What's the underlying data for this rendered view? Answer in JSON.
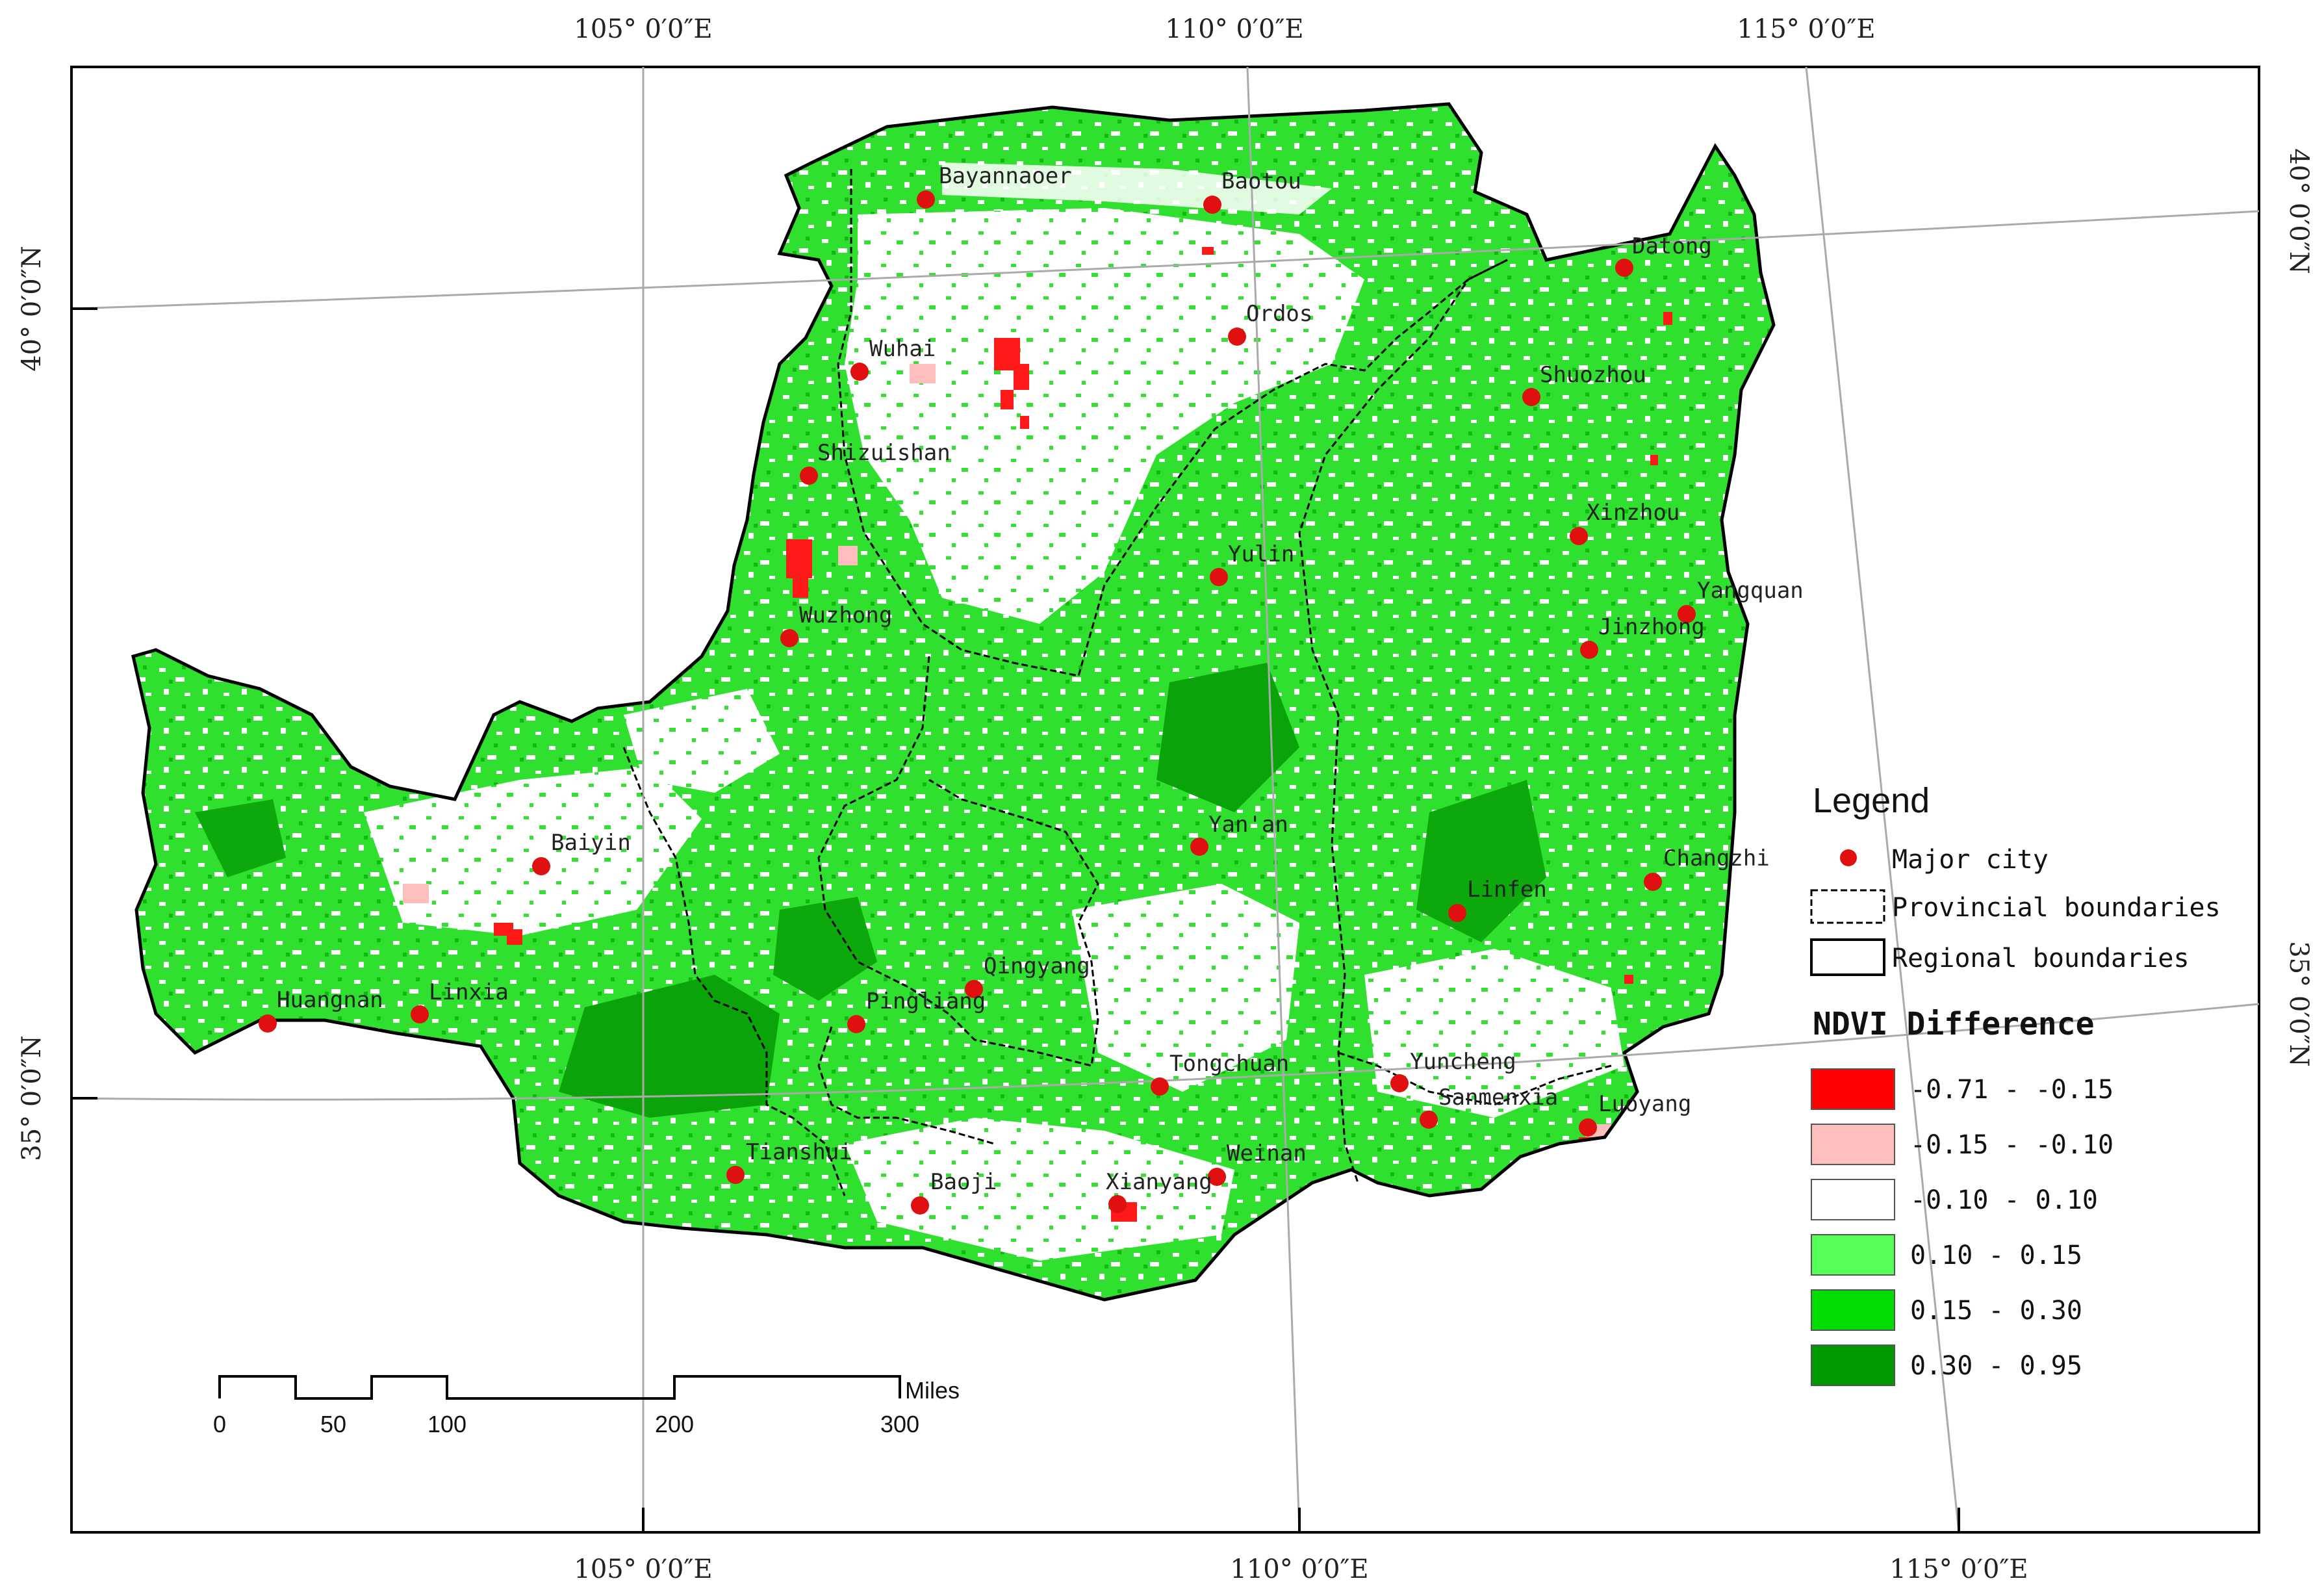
{
  "graticule": {
    "top_labels": [
      "105° 0′0″E",
      "110° 0′0″E",
      "115° 0′0″E"
    ],
    "bottom_labels": [
      "105° 0′0″E",
      "110° 0′0″E",
      "115° 0′0″E"
    ],
    "left_labels": [
      "40° 0′0″N",
      "35° 0′0″N"
    ],
    "right_labels": [
      "40° 0′0″N",
      "35° 0′0″N"
    ]
  },
  "cities": [
    {
      "name": "Bayannaoer"
    },
    {
      "name": "Baotou"
    },
    {
      "name": "Datong"
    },
    {
      "name": "Ordos"
    },
    {
      "name": "Wuhai"
    },
    {
      "name": "Shuozhou"
    },
    {
      "name": "Shizuishan"
    },
    {
      "name": "Xinzhou"
    },
    {
      "name": "Yulin"
    },
    {
      "name": "Yangquan"
    },
    {
      "name": "Wuzhong"
    },
    {
      "name": "Jinzhong"
    },
    {
      "name": "Yan'an"
    },
    {
      "name": "Baiyin"
    },
    {
      "name": "Changzhi"
    },
    {
      "name": "Linfen"
    },
    {
      "name": "Qingyang"
    },
    {
      "name": "Huangnan"
    },
    {
      "name": "Linxia"
    },
    {
      "name": "Pingliang"
    },
    {
      "name": "Tongchuan"
    },
    {
      "name": "Yuncheng"
    },
    {
      "name": "Sanmenxia"
    },
    {
      "name": "Luoyang"
    },
    {
      "name": "Tianshui"
    },
    {
      "name": "Weinan"
    },
    {
      "name": "Baoji"
    },
    {
      "name": "Xianyang"
    }
  ],
  "legend": {
    "title": "Legend",
    "major_city": "Major city",
    "provincial": "Provincial boundaries",
    "regional": "Regional boundaries",
    "ndvi_title": "NDVI Difference",
    "classes": [
      {
        "label": "-0.71 - -0.15",
        "color": "#ff0000"
      },
      {
        "label": "-0.15 - -0.10",
        "color": "#ffbebe"
      },
      {
        "label": "-0.10 - 0.10",
        "color": "#ffffff"
      },
      {
        "label": "0.10 - 0.15",
        "color": "#55ff55"
      },
      {
        "label": "0.15 - 0.30",
        "color": "#00dd00"
      },
      {
        "label": "0.30 - 0.95",
        "color": "#009900"
      }
    ]
  },
  "scale_bar": {
    "unit": "Miles",
    "ticks": [
      "0",
      "50",
      "100",
      "200",
      "300"
    ]
  },
  "colors": {
    "city": "#e01010",
    "green": "#22dd22",
    "dark_green": "#0aa40a",
    "red": "#ff0000"
  }
}
